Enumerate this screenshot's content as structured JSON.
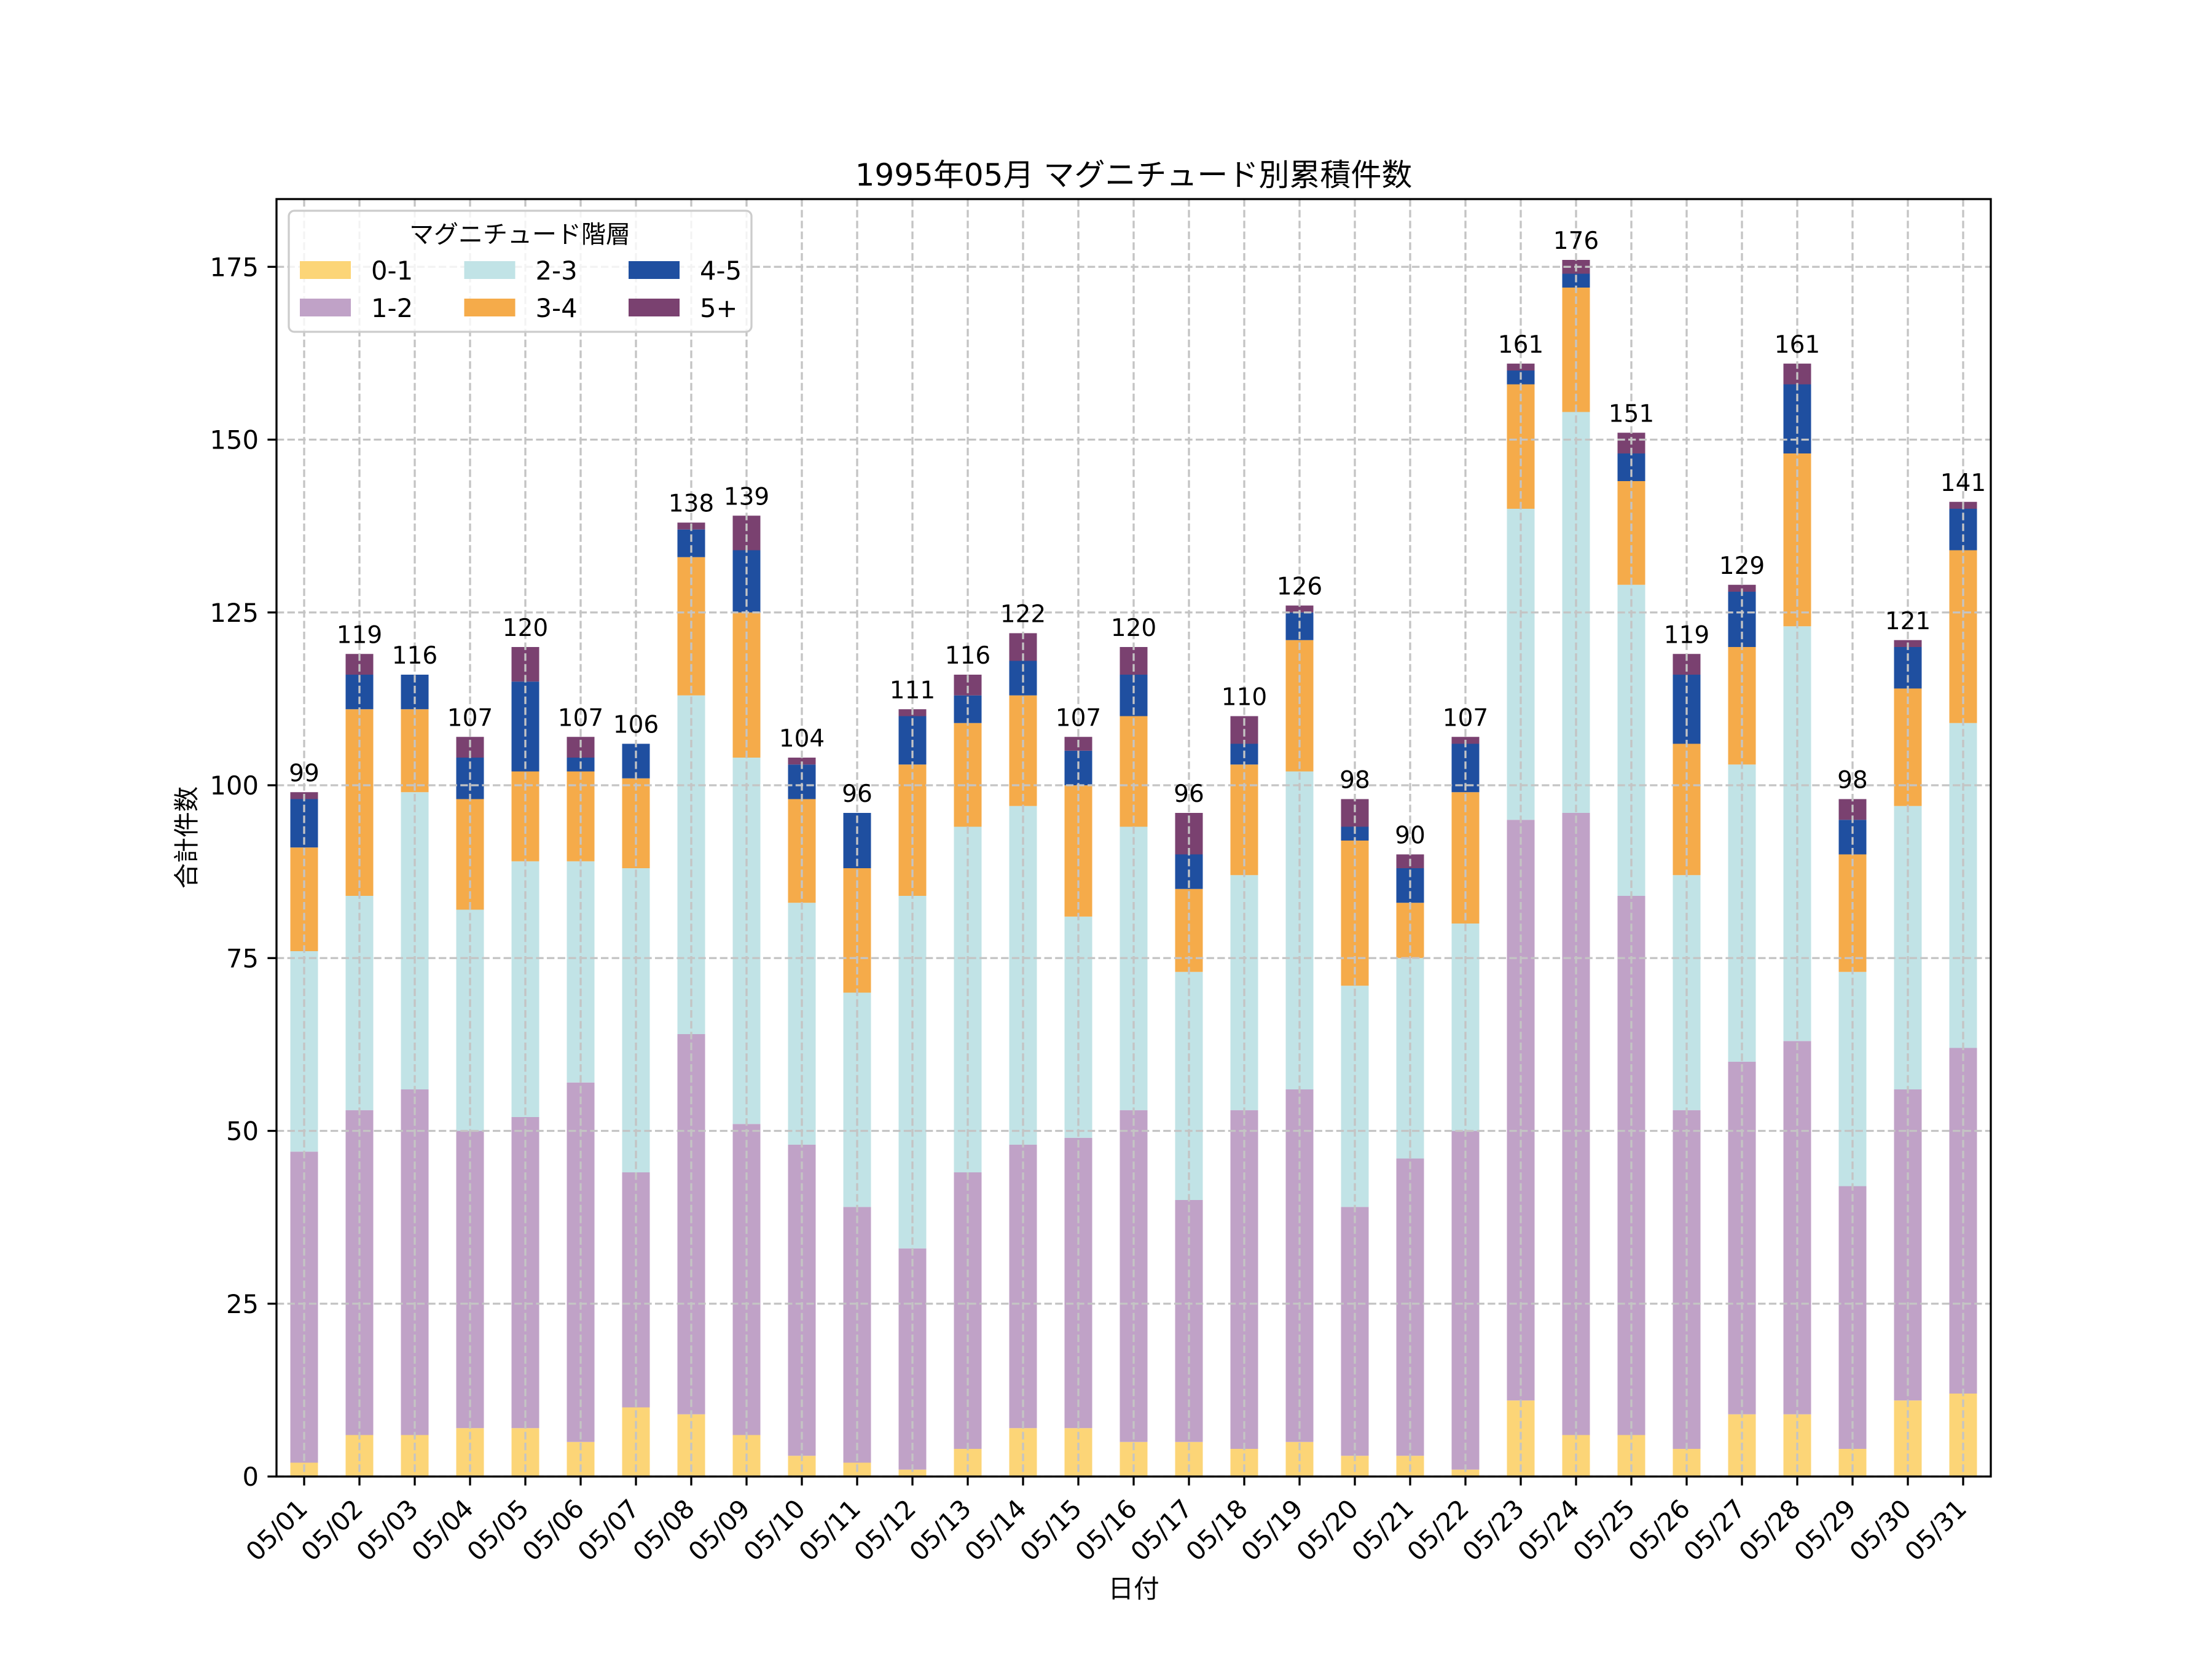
{
  "chart_data": {
    "type": "bar",
    "stacked": true,
    "title": "1995年05月 マグニチュード別累積件数",
    "xlabel": "日付",
    "ylabel": "合計件数",
    "categories": [
      "05/01",
      "05/02",
      "05/03",
      "05/04",
      "05/05",
      "05/06",
      "05/07",
      "05/08",
      "05/09",
      "05/10",
      "05/11",
      "05/12",
      "05/13",
      "05/14",
      "05/15",
      "05/16",
      "05/17",
      "05/18",
      "05/19",
      "05/20",
      "05/21",
      "05/22",
      "05/23",
      "05/24",
      "05/25",
      "05/26",
      "05/27",
      "05/28",
      "05/29",
      "05/30",
      "05/31"
    ],
    "series": [
      {
        "name": "0-1",
        "color": "#fcd577",
        "values": [
          2,
          6,
          6,
          7,
          7,
          5,
          10,
          9,
          6,
          3,
          2,
          1,
          4,
          7,
          7,
          5,
          5,
          4,
          5,
          3,
          3,
          1,
          11,
          6,
          6,
          4,
          9,
          9,
          4,
          11,
          12
        ]
      },
      {
        "name": "1-2",
        "color": "#c0a2c7",
        "values": [
          45,
          47,
          50,
          43,
          45,
          52,
          34,
          55,
          45,
          45,
          37,
          32,
          40,
          41,
          42,
          48,
          35,
          49,
          51,
          36,
          43,
          49,
          84,
          90,
          78,
          49,
          51,
          54,
          38,
          45,
          50
        ]
      },
      {
        "name": "2-3",
        "color": "#c1e3e6",
        "values": [
          29,
          31,
          43,
          32,
          37,
          32,
          44,
          49,
          53,
          35,
          31,
          51,
          50,
          49,
          32,
          41,
          33,
          34,
          46,
          32,
          29,
          30,
          45,
          58,
          45,
          34,
          43,
          60,
          31,
          41,
          47
        ]
      },
      {
        "name": "3-4",
        "color": "#f5ab4a",
        "values": [
          15,
          27,
          12,
          16,
          13,
          13,
          13,
          20,
          21,
          15,
          18,
          19,
          15,
          16,
          19,
          16,
          12,
          16,
          19,
          21,
          8,
          19,
          18,
          18,
          15,
          19,
          17,
          25,
          17,
          17,
          25
        ]
      },
      {
        "name": "4-5",
        "color": "#1f4fa0",
        "values": [
          7,
          5,
          5,
          6,
          13,
          2,
          5,
          4,
          9,
          5,
          8,
          7,
          4,
          5,
          5,
          6,
          5,
          3,
          4,
          2,
          5,
          7,
          2,
          2,
          4,
          10,
          8,
          10,
          5,
          6,
          6
        ]
      },
      {
        "name": "5+",
        "color": "#7a4170",
        "values": [
          1,
          3,
          0,
          3,
          5,
          3,
          0,
          1,
          5,
          1,
          0,
          1,
          3,
          4,
          2,
          4,
          6,
          4,
          1,
          4,
          2,
          1,
          1,
          2,
          3,
          3,
          1,
          3,
          3,
          1,
          1
        ]
      }
    ],
    "totals": [
      99,
      119,
      116,
      107,
      120,
      107,
      106,
      138,
      139,
      104,
      96,
      111,
      116,
      122,
      107,
      120,
      96,
      110,
      126,
      98,
      90,
      107,
      161,
      176,
      151,
      119,
      129,
      161,
      98,
      121,
      141
    ],
    "ylim": [
      0,
      184.8
    ],
    "yticks": [
      0,
      25,
      50,
      75,
      100,
      125,
      150,
      175
    ],
    "grid": true,
    "legend": {
      "title": "マグニチュード階層",
      "position": "top-left",
      "columns": 3
    }
  }
}
